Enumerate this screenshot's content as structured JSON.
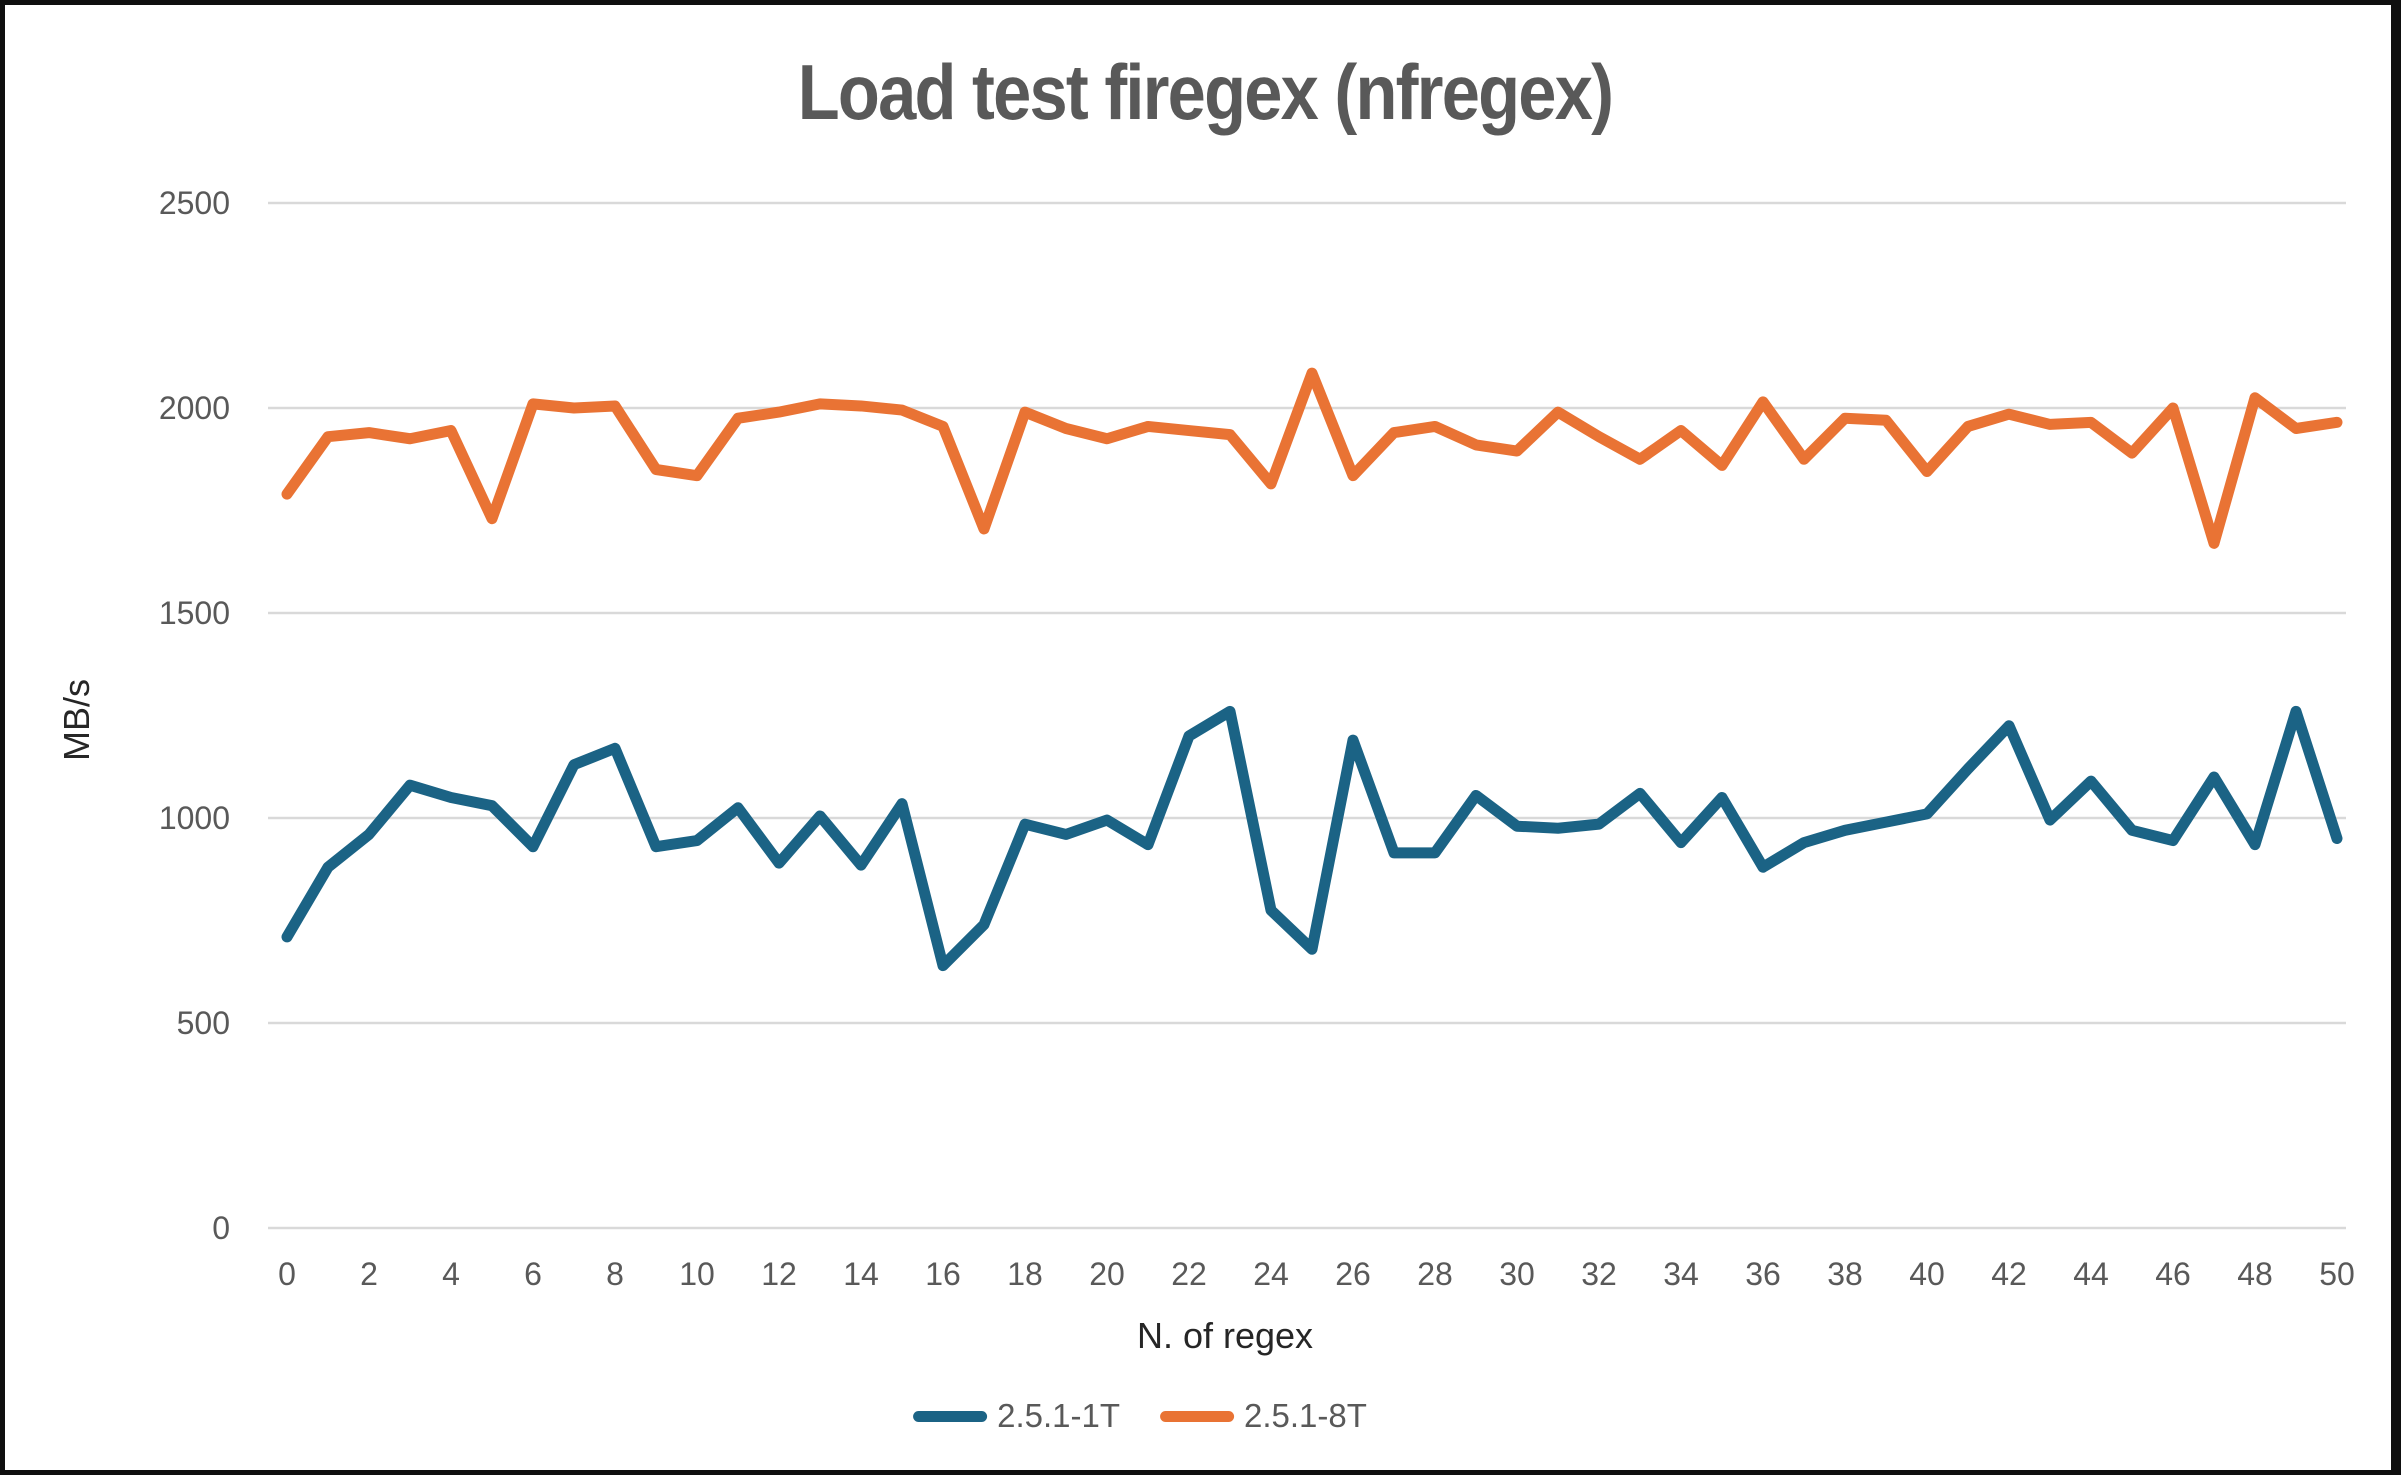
{
  "title": "Load test firegex (nfregex)",
  "y_axis": {
    "label": "MB/s",
    "ticks": [
      0,
      500,
      1000,
      1500,
      2000,
      2500
    ]
  },
  "x_axis": {
    "label": "N. of regex",
    "ticks": [
      0,
      2,
      4,
      6,
      8,
      10,
      12,
      14,
      16,
      18,
      20,
      22,
      24,
      26,
      28,
      30,
      32,
      34,
      36,
      38,
      40,
      42,
      44,
      46,
      48,
      50
    ]
  },
  "legend": {
    "items": [
      {
        "label": "2.5.1-1T",
        "color": "#1B6385"
      },
      {
        "label": "2.5.1-8T",
        "color": "#E97334"
      }
    ]
  },
  "colors": {
    "series_1t": "#1B6385",
    "series_8t": "#E97334",
    "gridline": "#D9D9D9",
    "tick_text": "#595959",
    "title_text": "#595959",
    "axis_title_text": "#262626"
  },
  "chart_data": {
    "type": "line",
    "title": "Load test firegex (nfregex)",
    "xlabel": "N. of regex",
    "ylabel": "MB/s",
    "xlim": [
      0,
      50
    ],
    "ylim": [
      0,
      2500
    ],
    "grid": "horizontal",
    "legend_position": "bottom",
    "x": [
      0,
      1,
      2,
      3,
      4,
      5,
      6,
      7,
      8,
      9,
      10,
      11,
      12,
      13,
      14,
      15,
      16,
      17,
      18,
      19,
      20,
      21,
      22,
      23,
      24,
      25,
      26,
      27,
      28,
      29,
      30,
      31,
      32,
      33,
      34,
      35,
      36,
      37,
      38,
      39,
      40,
      41,
      42,
      43,
      44,
      45,
      46,
      47,
      48,
      49,
      50
    ],
    "series": [
      {
        "name": "2.5.1-1T",
        "color": "#1B6385",
        "values": [
          710,
          880,
          960,
          1080,
          1050,
          1030,
          930,
          1130,
          1170,
          930,
          945,
          1025,
          890,
          1005,
          885,
          1035,
          640,
          740,
          985,
          960,
          995,
          935,
          1200,
          1260,
          775,
          680,
          1190,
          915,
          915,
          1055,
          980,
          975,
          985,
          1060,
          940,
          1050,
          880,
          940,
          970,
          990,
          1010,
          1120,
          1225,
          995,
          1090,
          970,
          945,
          1100,
          935,
          1260,
          950
        ]
      },
      {
        "name": "2.5.1-8T",
        "color": "#E97334",
        "values": [
          1790,
          1930,
          1940,
          1925,
          1945,
          1730,
          2010,
          2000,
          2005,
          1850,
          1835,
          1975,
          1990,
          2010,
          2005,
          1995,
          1955,
          1705,
          1990,
          1950,
          1925,
          1955,
          1945,
          1935,
          1815,
          2085,
          1835,
          1940,
          1955,
          1910,
          1895,
          1990,
          1930,
          1875,
          1945,
          1860,
          2015,
          1875,
          1975,
          1970,
          1845,
          1955,
          1985,
          1960,
          1965,
          1890,
          2000,
          1670,
          2025,
          1950,
          1965
        ]
      }
    ]
  }
}
